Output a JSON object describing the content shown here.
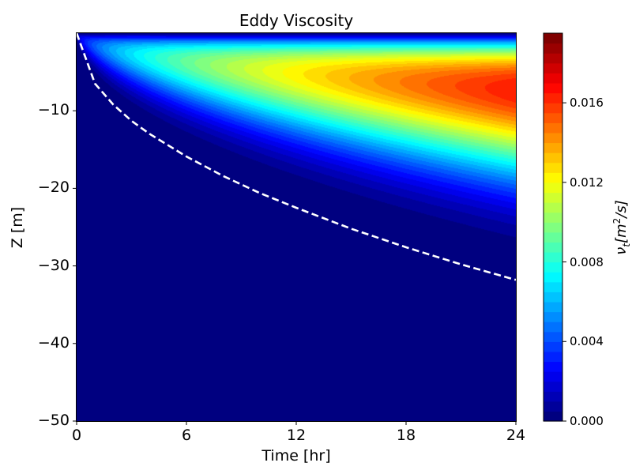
{
  "chart_data": {
    "type": "contourf",
    "title": "Eddy Viscosity",
    "xlabel": "Time [hr]",
    "ylabel": "Z [m]",
    "xlim": [
      0,
      24
    ],
    "ylim": [
      -50,
      0
    ],
    "xticks": [
      0,
      6,
      12,
      18,
      24
    ],
    "yticks": [
      -10,
      -20,
      -30,
      -40,
      -50
    ],
    "colormap": "jet",
    "colorbar": {
      "label": "ν_t[m²/s]",
      "label_main": "ν",
      "label_sub": "t",
      "label_unit": "[m",
      "label_sup": "2",
      "label_end": "/s]",
      "range": [
        0,
        0.0195
      ],
      "level_step": 0.0005,
      "ticks": [
        "0.000",
        "0.004",
        "0.008",
        "0.012",
        "0.016"
      ]
    },
    "field_summary": {
      "max_value": 0.0165,
      "max_location": {
        "time_hr": 24,
        "z_m": -7
      }
    },
    "dashed_line": {
      "color": "#ffffff",
      "time_hr": [
        0,
        1,
        2,
        3,
        4,
        6,
        8,
        10,
        12,
        15,
        18,
        21,
        24
      ],
      "z_m": [
        0,
        -6.5,
        -9.2,
        -11.3,
        -13.0,
        -15.9,
        -18.4,
        -20.6,
        -22.5,
        -25.2,
        -27.6,
        -29.8,
        -31.8
      ]
    },
    "grid": false
  }
}
